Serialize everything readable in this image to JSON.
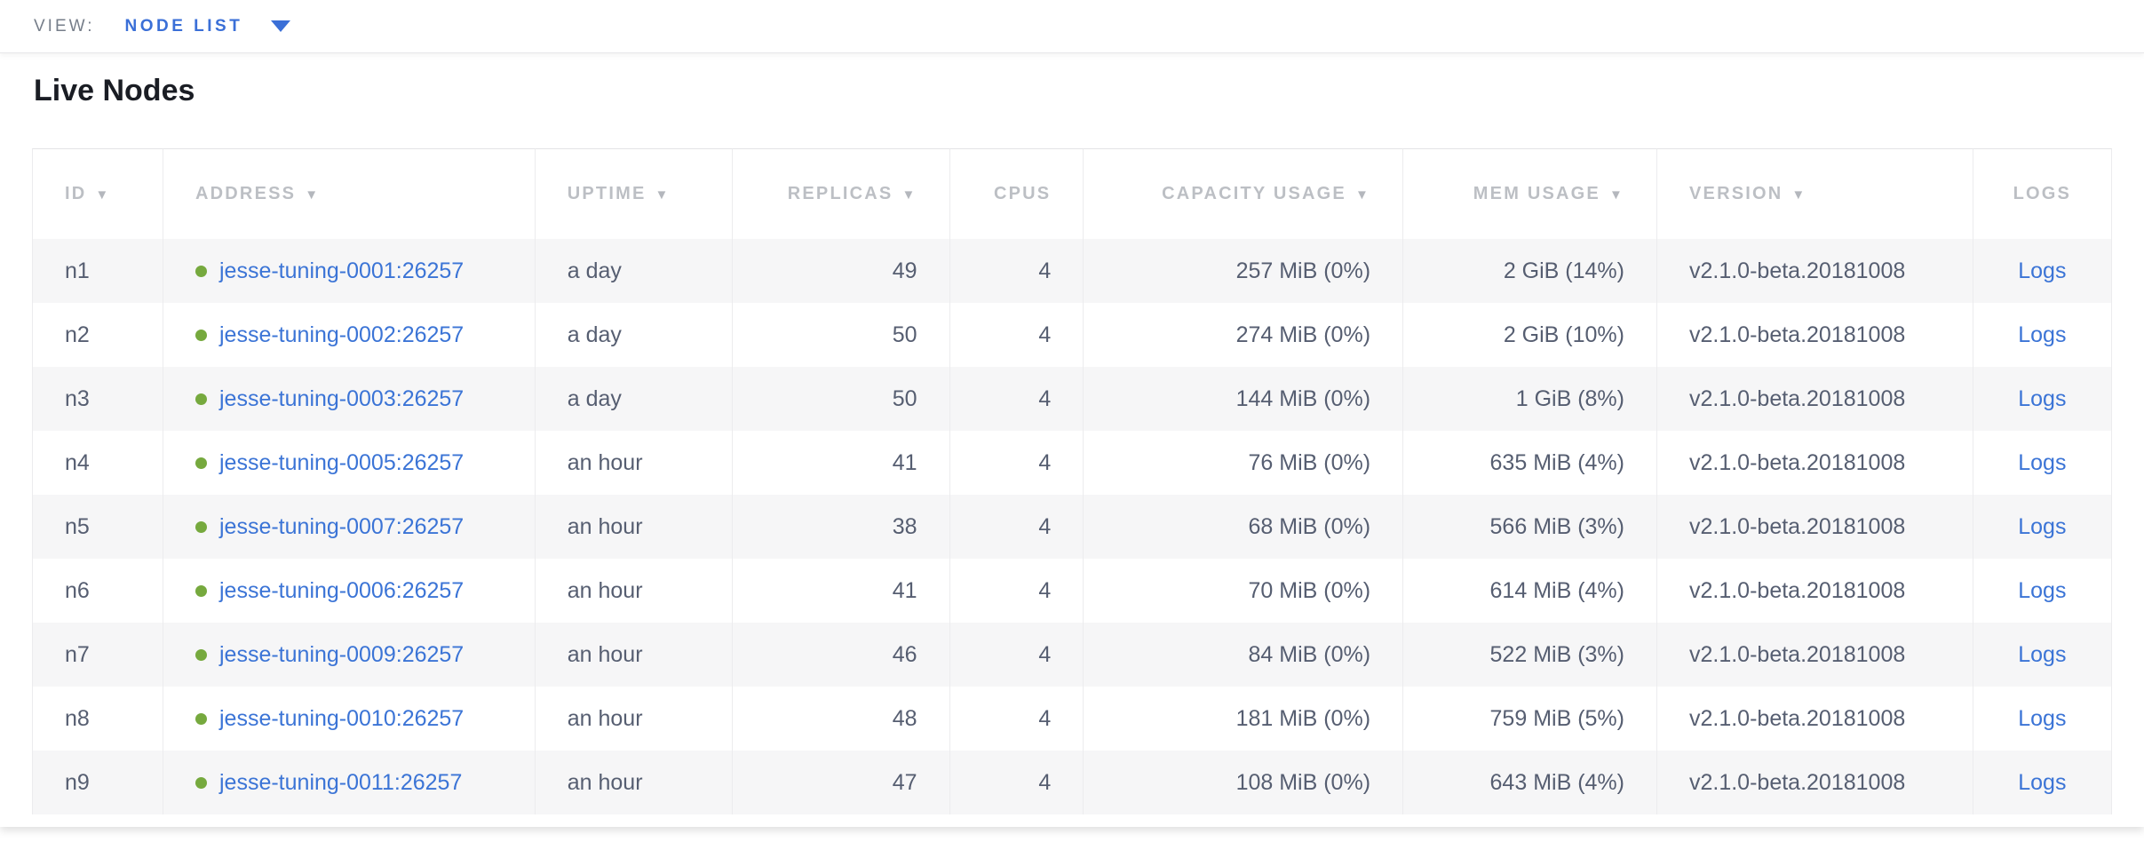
{
  "toolbar": {
    "view_label": "VIEW:",
    "view_value": "NODE LIST"
  },
  "page": {
    "title": "Live Nodes"
  },
  "table": {
    "sort_icon": "▼",
    "columns": [
      {
        "key": "id",
        "label": "ID",
        "sortable": true,
        "align": "left"
      },
      {
        "key": "address",
        "label": "ADDRESS",
        "sortable": true,
        "align": "left"
      },
      {
        "key": "uptime",
        "label": "UPTIME",
        "sortable": true,
        "align": "left"
      },
      {
        "key": "replicas",
        "label": "REPLICAS",
        "sortable": true,
        "align": "right"
      },
      {
        "key": "cpus",
        "label": "CPUS",
        "sortable": false,
        "align": "right"
      },
      {
        "key": "capacity",
        "label": "CAPACITY USAGE",
        "sortable": true,
        "align": "right"
      },
      {
        "key": "mem",
        "label": "MEM USAGE",
        "sortable": true,
        "align": "right"
      },
      {
        "key": "version",
        "label": "VERSION",
        "sortable": true,
        "align": "left"
      },
      {
        "key": "logs",
        "label": "LOGS",
        "sortable": false,
        "align": "center"
      }
    ],
    "rows": [
      {
        "id": "n1",
        "address": "jesse-tuning-0001:26257",
        "uptime": "a day",
        "replicas": "49",
        "cpus": "4",
        "capacity": "257 MiB (0%)",
        "mem": "2 GiB (14%)",
        "version": "v2.1.0-beta.20181008",
        "logs": "Logs"
      },
      {
        "id": "n2",
        "address": "jesse-tuning-0002:26257",
        "uptime": "a day",
        "replicas": "50",
        "cpus": "4",
        "capacity": "274 MiB (0%)",
        "mem": "2 GiB (10%)",
        "version": "v2.1.0-beta.20181008",
        "logs": "Logs"
      },
      {
        "id": "n3",
        "address": "jesse-tuning-0003:26257",
        "uptime": "a day",
        "replicas": "50",
        "cpus": "4",
        "capacity": "144 MiB (0%)",
        "mem": "1 GiB (8%)",
        "version": "v2.1.0-beta.20181008",
        "logs": "Logs"
      },
      {
        "id": "n4",
        "address": "jesse-tuning-0005:26257",
        "uptime": "an hour",
        "replicas": "41",
        "cpus": "4",
        "capacity": "76 MiB (0%)",
        "mem": "635 MiB (4%)",
        "version": "v2.1.0-beta.20181008",
        "logs": "Logs"
      },
      {
        "id": "n5",
        "address": "jesse-tuning-0007:26257",
        "uptime": "an hour",
        "replicas": "38",
        "cpus": "4",
        "capacity": "68 MiB (0%)",
        "mem": "566 MiB (3%)",
        "version": "v2.1.0-beta.20181008",
        "logs": "Logs"
      },
      {
        "id": "n6",
        "address": "jesse-tuning-0006:26257",
        "uptime": "an hour",
        "replicas": "41",
        "cpus": "4",
        "capacity": "70 MiB (0%)",
        "mem": "614 MiB (4%)",
        "version": "v2.1.0-beta.20181008",
        "logs": "Logs"
      },
      {
        "id": "n7",
        "address": "jesse-tuning-0009:26257",
        "uptime": "an hour",
        "replicas": "46",
        "cpus": "4",
        "capacity": "84 MiB (0%)",
        "mem": "522 MiB (3%)",
        "version": "v2.1.0-beta.20181008",
        "logs": "Logs"
      },
      {
        "id": "n8",
        "address": "jesse-tuning-0010:26257",
        "uptime": "an hour",
        "replicas": "48",
        "cpus": "4",
        "capacity": "181 MiB (0%)",
        "mem": "759 MiB (5%)",
        "version": "v2.1.0-beta.20181008",
        "logs": "Logs"
      },
      {
        "id": "n9",
        "address": "jesse-tuning-0011:26257",
        "uptime": "an hour",
        "replicas": "47",
        "cpus": "4",
        "capacity": "108 MiB (0%)",
        "mem": "643 MiB (4%)",
        "version": "v2.1.0-beta.20181008",
        "logs": "Logs"
      }
    ]
  },
  "colors": {
    "accent_blue": "#3a6fd7",
    "link_blue": "#3b74d6",
    "live_dot_green": "#76a93e",
    "header_text_gray": "#bcbfc4",
    "body_text": "#565e71",
    "row_stripe": "#f6f6f7",
    "divider": "#ececee"
  }
}
